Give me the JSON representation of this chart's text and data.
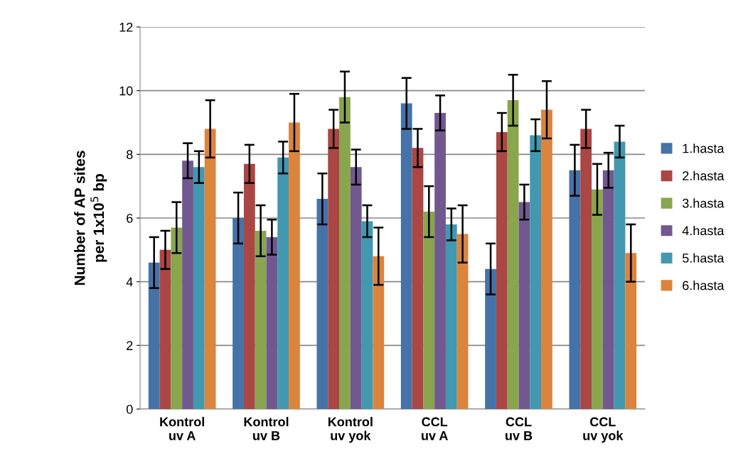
{
  "chart_data": {
    "type": "bar",
    "ylabel": "Number of AP sites\nper 1x10$^{5}$ bp",
    "categories": [
      "Kontrol\nuv A",
      "Kontrol\nuv B",
      "Kontrol\nuv yok",
      "CCL\nuv A",
      "CCL\nuv B",
      "CCL\nuv yok"
    ],
    "series": [
      {
        "name": "1.hasta",
        "color": "#4572a7",
        "values": [
          4.6,
          6.0,
          6.6,
          9.6,
          4.4,
          7.5
        ],
        "errors": [
          0.8,
          0.8,
          0.8,
          0.8,
          0.8,
          0.8
        ]
      },
      {
        "name": "2.hasta",
        "color": "#aa4643",
        "values": [
          5.0,
          7.7,
          8.8,
          8.2,
          8.7,
          8.8
        ],
        "errors": [
          0.6,
          0.6,
          0.6,
          0.6,
          0.6,
          0.6
        ]
      },
      {
        "name": "3.hasta",
        "color": "#89a54e",
        "values": [
          5.7,
          5.6,
          9.8,
          6.2,
          9.7,
          6.9
        ],
        "errors": [
          0.8,
          0.8,
          0.8,
          0.8,
          0.8,
          0.8
        ]
      },
      {
        "name": "4.hasta",
        "color": "#71588f",
        "values": [
          7.8,
          5.4,
          7.6,
          9.3,
          6.5,
          7.5
        ],
        "errors": [
          0.55,
          0.55,
          0.55,
          0.55,
          0.55,
          0.55
        ]
      },
      {
        "name": "5.hasta",
        "color": "#4198af",
        "values": [
          7.6,
          7.9,
          5.9,
          5.8,
          8.6,
          8.4
        ],
        "errors": [
          0.5,
          0.5,
          0.5,
          0.5,
          0.5,
          0.5
        ]
      },
      {
        "name": "6.hasta",
        "color": "#db843d",
        "values": [
          8.8,
          9.0,
          4.8,
          5.5,
          9.4,
          4.9
        ],
        "errors": [
          0.9,
          0.9,
          0.9,
          0.9,
          0.9,
          0.9
        ]
      }
    ],
    "ylim": [
      0,
      12
    ],
    "yticks": [
      0,
      2,
      4,
      6,
      8,
      10,
      12
    ],
    "grid": "y",
    "legend": "right"
  }
}
